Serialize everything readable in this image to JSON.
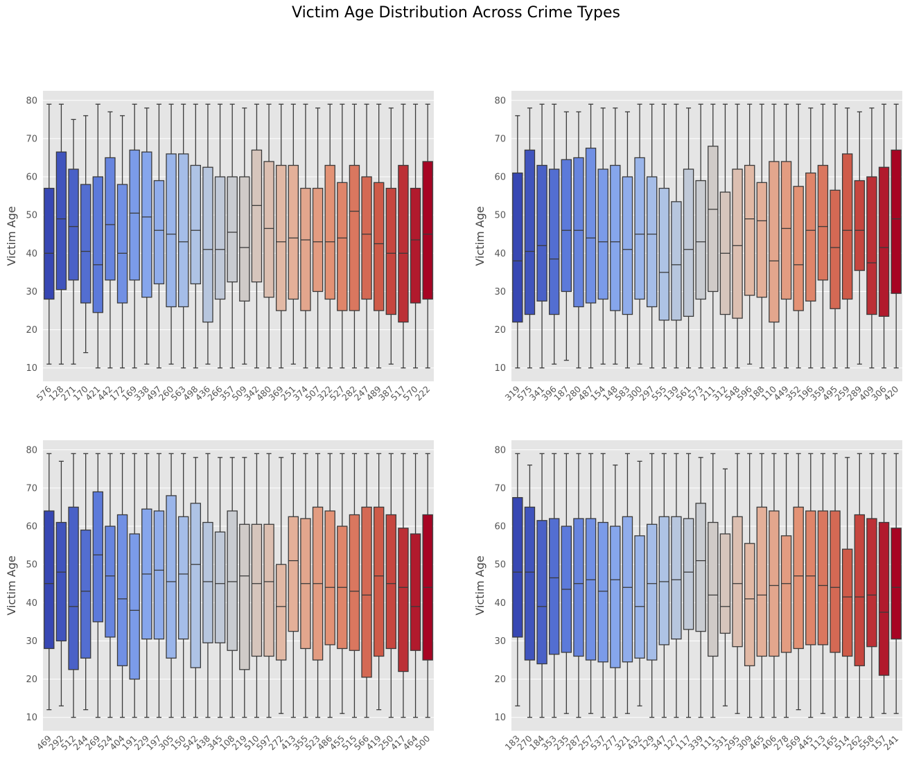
{
  "figure": {
    "title": "Victim Age Distribution Across Crime Types"
  },
  "chart_data": [
    {
      "type": "box",
      "title": "",
      "xlabel": "",
      "ylabel": "Victim Age",
      "ylim": [
        6.5,
        82.5
      ],
      "yticks": [
        10,
        20,
        30,
        40,
        50,
        60,
        70,
        80
      ],
      "grid": true,
      "palette": "coolwarm",
      "categories": [
        "576",
        "128",
        "271",
        "170",
        "421",
        "442",
        "172",
        "169",
        "338",
        "497",
        "260",
        "563",
        "498",
        "436",
        "266",
        "357",
        "509",
        "342",
        "480",
        "369",
        "251",
        "374",
        "507",
        "322",
        "527",
        "282",
        "247",
        "489",
        "387",
        "517",
        "570",
        "222"
      ],
      "boxes": [
        {
          "min": 11,
          "q1": 28,
          "median": 40,
          "q3": 57,
          "max": 79
        },
        {
          "min": 11,
          "q1": 30.5,
          "median": 49,
          "q3": 66.5,
          "max": 79
        },
        {
          "min": 11,
          "q1": 33,
          "median": 47,
          "q3": 62,
          "max": 75
        },
        {
          "min": 14,
          "q1": 27,
          "median": 40.5,
          "q3": 58,
          "max": 76
        },
        {
          "min": 10,
          "q1": 24.5,
          "median": 37,
          "q3": 60,
          "max": 79
        },
        {
          "min": 10,
          "q1": 33,
          "median": 47.5,
          "q3": 65,
          "max": 77
        },
        {
          "min": 10,
          "q1": 27,
          "median": 40,
          "q3": 58,
          "max": 76
        },
        {
          "min": 10,
          "q1": 33,
          "median": 50.5,
          "q3": 67,
          "max": 79
        },
        {
          "min": 11,
          "q1": 28.5,
          "median": 49.5,
          "q3": 66.5,
          "max": 78
        },
        {
          "min": 10,
          "q1": 32,
          "median": 46,
          "q3": 59,
          "max": 79
        },
        {
          "min": 11,
          "q1": 26,
          "median": 45,
          "q3": 66,
          "max": 79
        },
        {
          "min": 10,
          "q1": 26,
          "median": 43,
          "q3": 66,
          "max": 79
        },
        {
          "min": 10,
          "q1": 32,
          "median": 46,
          "q3": 63,
          "max": 79
        },
        {
          "min": 11,
          "q1": 22,
          "median": 41,
          "q3": 62.5,
          "max": 79
        },
        {
          "min": 10,
          "q1": 28,
          "median": 41,
          "q3": 60,
          "max": 79
        },
        {
          "min": 10,
          "q1": 32.5,
          "median": 45.5,
          "q3": 60,
          "max": 79
        },
        {
          "min": 11,
          "q1": 27.5,
          "median": 41.5,
          "q3": 60,
          "max": 78
        },
        {
          "min": 10,
          "q1": 32.5,
          "median": 52.5,
          "q3": 67,
          "max": 79
        },
        {
          "min": 10,
          "q1": 28.5,
          "median": 46.5,
          "q3": 64,
          "max": 79
        },
        {
          "min": 10,
          "q1": 25,
          "median": 43,
          "q3": 63,
          "max": 79
        },
        {
          "min": 11,
          "q1": 28,
          "median": 44,
          "q3": 63,
          "max": 79
        },
        {
          "min": 10,
          "q1": 25,
          "median": 43.5,
          "q3": 57,
          "max": 79
        },
        {
          "min": 10,
          "q1": 30,
          "median": 43,
          "q3": 57,
          "max": 78
        },
        {
          "min": 10,
          "q1": 28,
          "median": 43,
          "q3": 63,
          "max": 79
        },
        {
          "min": 10,
          "q1": 25,
          "median": 44,
          "q3": 58.5,
          "max": 79
        },
        {
          "min": 10,
          "q1": 25,
          "median": 51,
          "q3": 63,
          "max": 79
        },
        {
          "min": 10,
          "q1": 28,
          "median": 45,
          "q3": 60,
          "max": 79
        },
        {
          "min": 10,
          "q1": 25,
          "median": 42.5,
          "q3": 58.5,
          "max": 79
        },
        {
          "min": 11,
          "q1": 24,
          "median": 40,
          "q3": 57,
          "max": 78
        },
        {
          "min": 10,
          "q1": 22,
          "median": 40,
          "q3": 63,
          "max": 79
        },
        {
          "min": 10,
          "q1": 27,
          "median": 43.5,
          "q3": 57,
          "max": 79
        },
        {
          "min": 10,
          "q1": 28,
          "median": 45,
          "q3": 64,
          "max": 79
        }
      ]
    },
    {
      "type": "box",
      "title": "",
      "xlabel": "",
      "ylabel": "Victim Age",
      "ylim": [
        6.5,
        82.5
      ],
      "yticks": [
        10,
        20,
        30,
        40,
        50,
        60,
        70,
        80
      ],
      "grid": true,
      "palette": "coolwarm",
      "categories": [
        "319",
        "575",
        "341",
        "396",
        "187",
        "280",
        "487",
        "154",
        "148",
        "583",
        "300",
        "297",
        "555",
        "139",
        "561",
        "573",
        "211",
        "312",
        "548",
        "596",
        "188",
        "110",
        "449",
        "352",
        "196",
        "359",
        "495",
        "259",
        "289",
        "409",
        "306",
        "420"
      ],
      "boxes": [
        {
          "min": 10,
          "q1": 22,
          "median": 38,
          "q3": 61,
          "max": 76
        },
        {
          "min": 10,
          "q1": 24,
          "median": 40.5,
          "q3": 67,
          "max": 78
        },
        {
          "min": 10,
          "q1": 27.5,
          "median": 42,
          "q3": 63,
          "max": 79
        },
        {
          "min": 11,
          "q1": 24,
          "median": 38.5,
          "q3": 62,
          "max": 79
        },
        {
          "min": 12,
          "q1": 30,
          "median": 46,
          "q3": 64.5,
          "max": 77
        },
        {
          "min": 10,
          "q1": 26,
          "median": 46,
          "q3": 65,
          "max": 77
        },
        {
          "min": 10,
          "q1": 27,
          "median": 44,
          "q3": 67.5,
          "max": 79
        },
        {
          "min": 11,
          "q1": 28,
          "median": 43,
          "q3": 62,
          "max": 78
        },
        {
          "min": 11,
          "q1": 25,
          "median": 43,
          "q3": 63,
          "max": 78
        },
        {
          "min": 10,
          "q1": 24,
          "median": 41,
          "q3": 60,
          "max": 77
        },
        {
          "min": 11,
          "q1": 28,
          "median": 45,
          "q3": 65,
          "max": 79
        },
        {
          "min": 10,
          "q1": 26,
          "median": 45,
          "q3": 60,
          "max": 79
        },
        {
          "min": 10,
          "q1": 22.5,
          "median": 35,
          "q3": 57,
          "max": 79
        },
        {
          "min": 10,
          "q1": 22.5,
          "median": 37,
          "q3": 53.5,
          "max": 79
        },
        {
          "min": 10,
          "q1": 23.5,
          "median": 41,
          "q3": 62,
          "max": 78
        },
        {
          "min": 10,
          "q1": 28,
          "median": 43,
          "q3": 59,
          "max": 79
        },
        {
          "min": 10,
          "q1": 30,
          "median": 51.5,
          "q3": 68,
          "max": 79
        },
        {
          "min": 10,
          "q1": 24,
          "median": 40,
          "q3": 56,
          "max": 79
        },
        {
          "min": 10,
          "q1": 23,
          "median": 42,
          "q3": 62,
          "max": 79
        },
        {
          "min": 11,
          "q1": 29,
          "median": 49,
          "q3": 63,
          "max": 79
        },
        {
          "min": 10,
          "q1": 28.5,
          "median": 48.5,
          "q3": 58.5,
          "max": 79
        },
        {
          "min": 10,
          "q1": 22,
          "median": 38,
          "q3": 64,
          "max": 79
        },
        {
          "min": 10,
          "q1": 28,
          "median": 46.5,
          "q3": 64,
          "max": 79
        },
        {
          "min": 10,
          "q1": 25,
          "median": 37,
          "q3": 57.5,
          "max": 79
        },
        {
          "min": 10,
          "q1": 27.5,
          "median": 46,
          "q3": 61,
          "max": 78
        },
        {
          "min": 10,
          "q1": 33,
          "median": 47,
          "q3": 63,
          "max": 79
        },
        {
          "min": 10,
          "q1": 25.5,
          "median": 41.5,
          "q3": 56.5,
          "max": 79
        },
        {
          "min": 10,
          "q1": 28,
          "median": 46,
          "q3": 66,
          "max": 78
        },
        {
          "min": 11,
          "q1": 35.5,
          "median": 46,
          "q3": 59,
          "max": 77
        },
        {
          "min": 10,
          "q1": 24,
          "median": 37.5,
          "q3": 60,
          "max": 78
        },
        {
          "min": 10,
          "q1": 23.5,
          "median": 41.5,
          "q3": 62.5,
          "max": 79
        },
        {
          "min": 10,
          "q1": 29.5,
          "median": 49,
          "q3": 67,
          "max": 79
        }
      ]
    },
    {
      "type": "box",
      "title": "",
      "xlabel": "",
      "ylabel": "Victim Age",
      "ylim": [
        6.5,
        82.5
      ],
      "yticks": [
        10,
        20,
        30,
        40,
        50,
        60,
        70,
        80
      ],
      "grid": true,
      "palette": "coolwarm",
      "categories": [
        "469",
        "292",
        "512",
        "244",
        "269",
        "524",
        "404",
        "191",
        "229",
        "197",
        "305",
        "150",
        "542",
        "438",
        "345",
        "108",
        "219",
        "510",
        "597",
        "272",
        "413",
        "355",
        "523",
        "486",
        "455",
        "515",
        "566",
        "419",
        "250",
        "417",
        "464",
        "500"
      ],
      "boxes": [
        {
          "min": 12,
          "q1": 28,
          "median": 45,
          "q3": 64,
          "max": 79
        },
        {
          "min": 13,
          "q1": 30,
          "median": 48,
          "q3": 61,
          "max": 77
        },
        {
          "min": 10,
          "q1": 22.5,
          "median": 39,
          "q3": 65,
          "max": 79
        },
        {
          "min": 12,
          "q1": 25.5,
          "median": 43,
          "q3": 59,
          "max": 79
        },
        {
          "min": 10,
          "q1": 35,
          "median": 52.5,
          "q3": 69,
          "max": 79
        },
        {
          "min": 10,
          "q1": 31,
          "median": 47,
          "q3": 60,
          "max": 79
        },
        {
          "min": 10,
          "q1": 23.5,
          "median": 41,
          "q3": 63,
          "max": 79
        },
        {
          "min": 10,
          "q1": 20,
          "median": 38,
          "q3": 58,
          "max": 79
        },
        {
          "min": 10,
          "q1": 30.5,
          "median": 47.5,
          "q3": 64.5,
          "max": 79
        },
        {
          "min": 10,
          "q1": 30.5,
          "median": 48.5,
          "q3": 64,
          "max": 79
        },
        {
          "min": 10,
          "q1": 25.5,
          "median": 45.5,
          "q3": 68,
          "max": 79
        },
        {
          "min": 10,
          "q1": 30.5,
          "median": 47.5,
          "q3": 62.5,
          "max": 79
        },
        {
          "min": 10,
          "q1": 23,
          "median": 50,
          "q3": 66,
          "max": 78
        },
        {
          "min": 10,
          "q1": 29.5,
          "median": 45.5,
          "q3": 61,
          "max": 79
        },
        {
          "min": 10,
          "q1": 29.5,
          "median": 45,
          "q3": 58.5,
          "max": 78
        },
        {
          "min": 10,
          "q1": 27.5,
          "median": 45.5,
          "q3": 64,
          "max": 78
        },
        {
          "min": 10,
          "q1": 22.5,
          "median": 47,
          "q3": 60.5,
          "max": 78
        },
        {
          "min": 10,
          "q1": 26,
          "median": 45,
          "q3": 60.5,
          "max": 79
        },
        {
          "min": 10,
          "q1": 26,
          "median": 45.5,
          "q3": 60.5,
          "max": 79
        },
        {
          "min": 11,
          "q1": 25,
          "median": 39,
          "q3": 50,
          "max": 78
        },
        {
          "min": 10,
          "q1": 32.5,
          "median": 51,
          "q3": 62.5,
          "max": 79
        },
        {
          "min": 10,
          "q1": 28,
          "median": 45,
          "q3": 62,
          "max": 79
        },
        {
          "min": 10,
          "q1": 25,
          "median": 45,
          "q3": 65,
          "max": 79
        },
        {
          "min": 10,
          "q1": 29,
          "median": 44,
          "q3": 64,
          "max": 79
        },
        {
          "min": 11,
          "q1": 28,
          "median": 44,
          "q3": 60,
          "max": 79
        },
        {
          "min": 10,
          "q1": 27.5,
          "median": 43,
          "q3": 63,
          "max": 79
        },
        {
          "min": 10,
          "q1": 20.5,
          "median": 42,
          "q3": 65,
          "max": 79
        },
        {
          "min": 12,
          "q1": 26,
          "median": 47,
          "q3": 65,
          "max": 79
        },
        {
          "min": 10,
          "q1": 28,
          "median": 45,
          "q3": 63,
          "max": 79
        },
        {
          "min": 10,
          "q1": 22,
          "median": 44,
          "q3": 59.5,
          "max": 79
        },
        {
          "min": 10,
          "q1": 27.5,
          "median": 39,
          "q3": 58,
          "max": 79
        },
        {
          "min": 10,
          "q1": 25,
          "median": 44,
          "q3": 63,
          "max": 79
        }
      ]
    },
    {
      "type": "box",
      "title": "",
      "xlabel": "",
      "ylabel": "Victim Age",
      "ylim": [
        6.5,
        82.5
      ],
      "yticks": [
        10,
        20,
        30,
        40,
        50,
        60,
        70,
        80
      ],
      "grid": true,
      "palette": "coolwarm",
      "categories": [
        "183",
        "270",
        "184",
        "353",
        "235",
        "287",
        "257",
        "537",
        "277",
        "321",
        "432",
        "129",
        "347",
        "127",
        "117",
        "339",
        "111",
        "331",
        "295",
        "309",
        "465",
        "406",
        "278",
        "569",
        "445",
        "113",
        "165",
        "514",
        "262",
        "558",
        "157",
        "241"
      ],
      "boxes": [
        {
          "min": 13,
          "q1": 31,
          "median": 48,
          "q3": 67.5,
          "max": 79
        },
        {
          "min": 10,
          "q1": 25,
          "median": 48,
          "q3": 65,
          "max": 76
        },
        {
          "min": 10,
          "q1": 24,
          "median": 39,
          "q3": 61.5,
          "max": 79
        },
        {
          "min": 10,
          "q1": 26.5,
          "median": 46.5,
          "q3": 62,
          "max": 79
        },
        {
          "min": 11,
          "q1": 27,
          "median": 43.5,
          "q3": 60,
          "max": 79
        },
        {
          "min": 10,
          "q1": 26,
          "median": 45,
          "q3": 62,
          "max": 79
        },
        {
          "min": 11,
          "q1": 25,
          "median": 46,
          "q3": 62,
          "max": 79
        },
        {
          "min": 10,
          "q1": 24.5,
          "median": 43,
          "q3": 61,
          "max": 79
        },
        {
          "min": 10,
          "q1": 23,
          "median": 46,
          "q3": 60,
          "max": 76
        },
        {
          "min": 11,
          "q1": 24.5,
          "median": 44,
          "q3": 62.5,
          "max": 79
        },
        {
          "min": 13,
          "q1": 25.5,
          "median": 39,
          "q3": 57.5,
          "max": 77
        },
        {
          "min": 10,
          "q1": 25,
          "median": 45,
          "q3": 60.5,
          "max": 79
        },
        {
          "min": 10,
          "q1": 29,
          "median": 45.5,
          "q3": 62.5,
          "max": 79
        },
        {
          "min": 10,
          "q1": 30.5,
          "median": 46,
          "q3": 62.5,
          "max": 79
        },
        {
          "min": 10,
          "q1": 33,
          "median": 48,
          "q3": 62,
          "max": 79
        },
        {
          "min": 10,
          "q1": 32.5,
          "median": 51,
          "q3": 66,
          "max": 78
        },
        {
          "min": 10,
          "q1": 26,
          "median": 42,
          "q3": 61,
          "max": 79
        },
        {
          "min": 13,
          "q1": 32,
          "median": 39,
          "q3": 58,
          "max": 75
        },
        {
          "min": 11,
          "q1": 28.5,
          "median": 45,
          "q3": 62.5,
          "max": 79
        },
        {
          "min": 10,
          "q1": 23.5,
          "median": 41,
          "q3": 55.5,
          "max": 79
        },
        {
          "min": 10,
          "q1": 26,
          "median": 42,
          "q3": 65,
          "max": 79
        },
        {
          "min": 10,
          "q1": 26,
          "median": 44.5,
          "q3": 64,
          "max": 79
        },
        {
          "min": 10,
          "q1": 27,
          "median": 45,
          "q3": 57.5,
          "max": 79
        },
        {
          "min": 12,
          "q1": 28,
          "median": 47,
          "q3": 65,
          "max": 79
        },
        {
          "min": 10,
          "q1": 29,
          "median": 47,
          "q3": 64,
          "max": 79
        },
        {
          "min": 11,
          "q1": 29,
          "median": 44.5,
          "q3": 64,
          "max": 79
        },
        {
          "min": 10,
          "q1": 27,
          "median": 44,
          "q3": 64,
          "max": 79
        },
        {
          "min": 10,
          "q1": 26,
          "median": 41.5,
          "q3": 54,
          "max": 78
        },
        {
          "min": 10,
          "q1": 23.5,
          "median": 41.5,
          "q3": 63,
          "max": 79
        },
        {
          "min": 10,
          "q1": 28.5,
          "median": 42,
          "q3": 62,
          "max": 79
        },
        {
          "min": 11,
          "q1": 21,
          "median": 37.5,
          "q3": 61,
          "max": 79
        },
        {
          "min": 11,
          "q1": 30.5,
          "median": 44,
          "q3": 59.5,
          "max": 79
        }
      ]
    }
  ]
}
